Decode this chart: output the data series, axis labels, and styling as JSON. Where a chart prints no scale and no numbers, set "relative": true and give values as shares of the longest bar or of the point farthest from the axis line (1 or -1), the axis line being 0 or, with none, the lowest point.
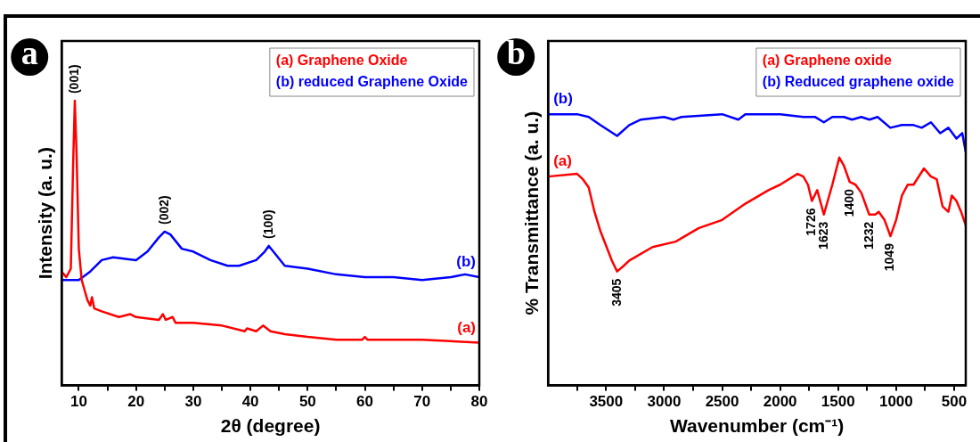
{
  "chart_data": [
    {
      "type": "line",
      "xlabel": "2θ (degree)",
      "ylabel": "Intensity (a. u.)",
      "relative": true,
      "legend": "top right",
      "xlim": [
        7,
        80
      ],
      "xticks": [
        10,
        {
          "value": 15,
          "label": null
        },
        20,
        {
          "value": 25,
          "label": null
        },
        30,
        {
          "value": 35,
          "label": null
        },
        40,
        {
          "value": 45,
          "label": null
        },
        50,
        {
          "value": 55,
          "label": null
        },
        60,
        {
          "value": 65,
          "label": null
        },
        70,
        {
          "value": 75,
          "label": null
        },
        80
      ],
      "series": [
        {
          "name": "(a) Graphene Oxide",
          "color": "#ff0000",
          "x": [
            7,
            7.8,
            8.6,
            9,
            9.3,
            9.6,
            10,
            10.5,
            11.5,
            12,
            12.3,
            12.7,
            14,
            17,
            19,
            20,
            24,
            24.7,
            25.2,
            26.4,
            26.9,
            30,
            35,
            39,
            39.4,
            41,
            42.2,
            43.5,
            46,
            50,
            55,
            59.5,
            60,
            60.5,
            65,
            70,
            80
          ],
          "values": [
            0.4,
            0.38,
            0.41,
            0.77,
            1.0,
            0.82,
            0.48,
            0.37,
            0.3,
            0.28,
            0.31,
            0.27,
            0.26,
            0.24,
            0.25,
            0.24,
            0.23,
            0.25,
            0.23,
            0.24,
            0.22,
            0.22,
            0.21,
            0.19,
            0.2,
            0.19,
            0.21,
            0.19,
            0.18,
            0.17,
            0.16,
            0.16,
            0.17,
            0.16,
            0.16,
            0.16,
            0.15
          ]
        },
        {
          "name": "(b) reduced Graphene Oxide",
          "color": "#0000ff",
          "x": [
            7,
            10,
            12,
            14,
            16,
            20,
            22,
            24,
            25,
            26,
            28,
            30,
            33,
            36,
            38,
            41,
            42.5,
            43.2,
            44,
            46,
            50,
            55,
            60,
            65,
            70,
            75,
            77.5,
            80
          ],
          "values": [
            0.37,
            0.37,
            0.4,
            0.44,
            0.45,
            0.44,
            0.47,
            0.52,
            0.54,
            0.53,
            0.48,
            0.47,
            0.44,
            0.42,
            0.42,
            0.44,
            0.47,
            0.49,
            0.47,
            0.42,
            0.41,
            0.39,
            0.38,
            0.38,
            0.37,
            0.38,
            0.39,
            0.38
          ]
        }
      ],
      "annotations": [
        "a",
        {
          "text": "(001)",
          "x": 9.3,
          "y": 1.0
        },
        {
          "text": "(002)",
          "x": 25,
          "y": 0.54
        },
        {
          "text": "(100)",
          "x": 43.2,
          "y": 0.49
        },
        "(a)",
        "(b)"
      ]
    },
    {
      "type": "line",
      "xlabel": "Wavenumber (cm⁻¹)",
      "ylabel": "% Transmittance (a. u.)",
      "relative": true,
      "legend": "top right",
      "xlim": [
        4000,
        400
      ],
      "xticks": [
        {
          "value": 3750,
          "label": null
        },
        3500,
        {
          "value": 3250,
          "label": null
        },
        3000,
        {
          "value": 2750,
          "label": null
        },
        2500,
        {
          "value": 2250,
          "label": null
        },
        2000,
        {
          "value": 1750,
          "label": null
        },
        1500,
        {
          "value": 1250,
          "label": null
        },
        1000,
        {
          "value": 750,
          "label": null
        },
        500
      ],
      "series": [
        {
          "name": "(a) Graphene oxide",
          "color": "#ff0000",
          "x": [
            4000,
            3750,
            3700,
            3650,
            3600,
            3550,
            3450,
            3405,
            3350,
            3300,
            3100,
            2900,
            2700,
            2500,
            2300,
            2100,
            2000,
            1850,
            1800,
            1760,
            1726,
            1680,
            1623,
            1550,
            1490,
            1450,
            1400,
            1350,
            1300,
            1232,
            1180,
            1150,
            1100,
            1049,
            1000,
            950,
            900,
            850,
            760,
            700,
            650,
            600,
            550,
            520,
            480,
            440,
            400
          ],
          "values": [
            0.77,
            0.78,
            0.76,
            0.73,
            0.64,
            0.57,
            0.46,
            0.42,
            0.44,
            0.46,
            0.51,
            0.53,
            0.58,
            0.61,
            0.67,
            0.72,
            0.74,
            0.78,
            0.77,
            0.74,
            0.68,
            0.72,
            0.63,
            0.74,
            0.84,
            0.81,
            0.75,
            0.74,
            0.71,
            0.63,
            0.63,
            0.64,
            0.61,
            0.55,
            0.61,
            0.7,
            0.74,
            0.74,
            0.8,
            0.77,
            0.76,
            0.66,
            0.64,
            0.7,
            0.68,
            0.64,
            0.59
          ]
        },
        {
          "name": "(b) Reduced graphene oxide",
          "color": "#0000ff",
          "x": [
            4000,
            3750,
            3650,
            3550,
            3405,
            3300,
            3200,
            3000,
            2920,
            2850,
            2500,
            2360,
            2300,
            2000,
            1800,
            1700,
            1623,
            1550,
            1450,
            1380,
            1300,
            1230,
            1160,
            1050,
            950,
            850,
            780,
            700,
            620,
            550,
            480,
            430,
            400
          ],
          "values": [
            1.0,
            1.0,
            0.99,
            0.96,
            0.92,
            0.96,
            0.98,
            0.99,
            0.98,
            0.99,
            1.0,
            0.98,
            1.0,
            1.0,
            0.99,
            0.99,
            0.97,
            0.99,
            0.99,
            0.98,
            0.99,
            0.98,
            0.99,
            0.95,
            0.96,
            0.96,
            0.95,
            0.97,
            0.93,
            0.95,
            0.91,
            0.93,
            0.86
          ]
        }
      ],
      "annotations": [
        "b",
        {
          "text": "3405",
          "x": 3405,
          "y": 0.42
        },
        {
          "text": "1726",
          "x": 1726,
          "y": 0.68
        },
        {
          "text": "1623",
          "x": 1623,
          "y": 0.63
        },
        {
          "text": "1400",
          "x": 1400,
          "y": 0.75
        },
        {
          "text": "1232",
          "x": 1232,
          "y": 0.63
        },
        {
          "text": "1049",
          "x": 1049,
          "y": 0.55
        },
        "(a)",
        "(b)"
      ]
    }
  ]
}
